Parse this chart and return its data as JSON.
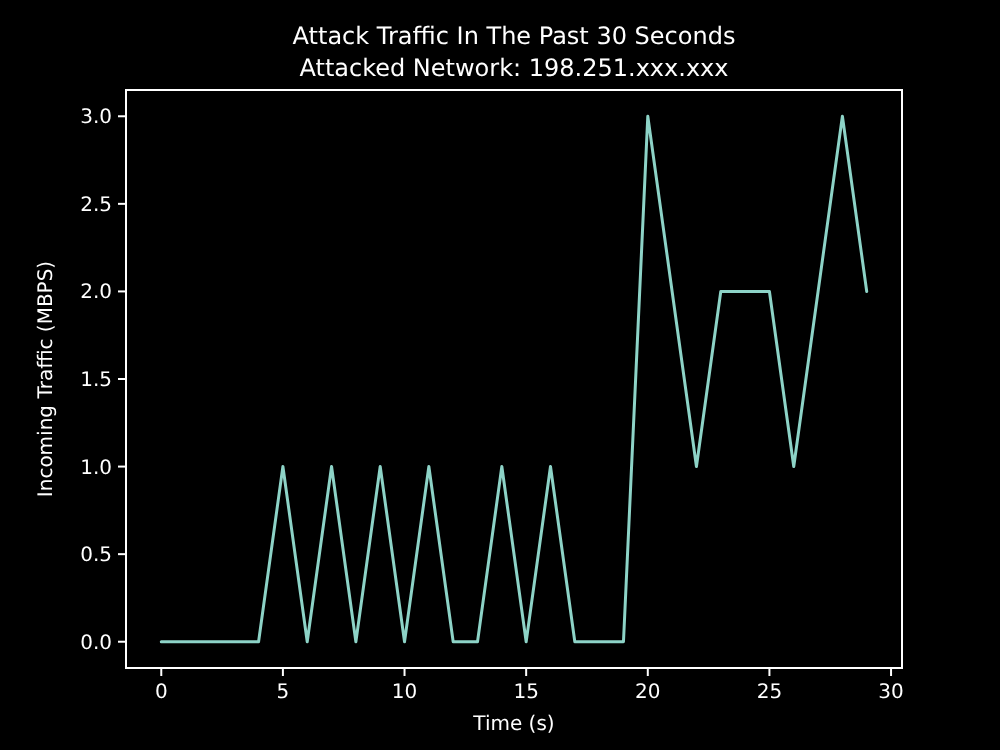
{
  "chart_data": {
    "type": "line",
    "title": "Attack Traffic In The Past 30 Seconds",
    "subtitle": "Attacked Network: 198.251.xxx.xxx",
    "xlabel": "Time (s)",
    "ylabel": "Incoming Traffic (MBPS)",
    "x": [
      0,
      1,
      2,
      3,
      4,
      5,
      6,
      7,
      8,
      9,
      10,
      11,
      12,
      13,
      14,
      15,
      16,
      17,
      18,
      19,
      20,
      21,
      22,
      23,
      24,
      25,
      26,
      27,
      28,
      29
    ],
    "series": [
      {
        "color": "#8dd3c7",
        "values": [
          0,
          0,
          0,
          0,
          0,
          1,
          0,
          1,
          0,
          1,
          0,
          1,
          0,
          0,
          1,
          0,
          1,
          0,
          0,
          0,
          3,
          2,
          1,
          2,
          2,
          2,
          1,
          2,
          3,
          2
        ]
      }
    ],
    "xlim": [
      -1.45,
      30.45
    ],
    "xticks": [
      0,
      5,
      10,
      15,
      20,
      25,
      30
    ],
    "ylim": [
      -0.15,
      3.15
    ],
    "yticks": [
      {
        "value": 0,
        "label": "0.0"
      },
      {
        "value": 0.5,
        "label": "0.5"
      },
      {
        "value": 1,
        "label": "1.0"
      },
      {
        "value": 1.5,
        "label": "1.5"
      },
      {
        "value": 2,
        "label": "2.0"
      },
      {
        "value": 2.5,
        "label": "2.5"
      },
      {
        "value": 3,
        "label": "3.0"
      }
    ],
    "grid": false,
    "marker": "none",
    "line_style": "solid"
  }
}
